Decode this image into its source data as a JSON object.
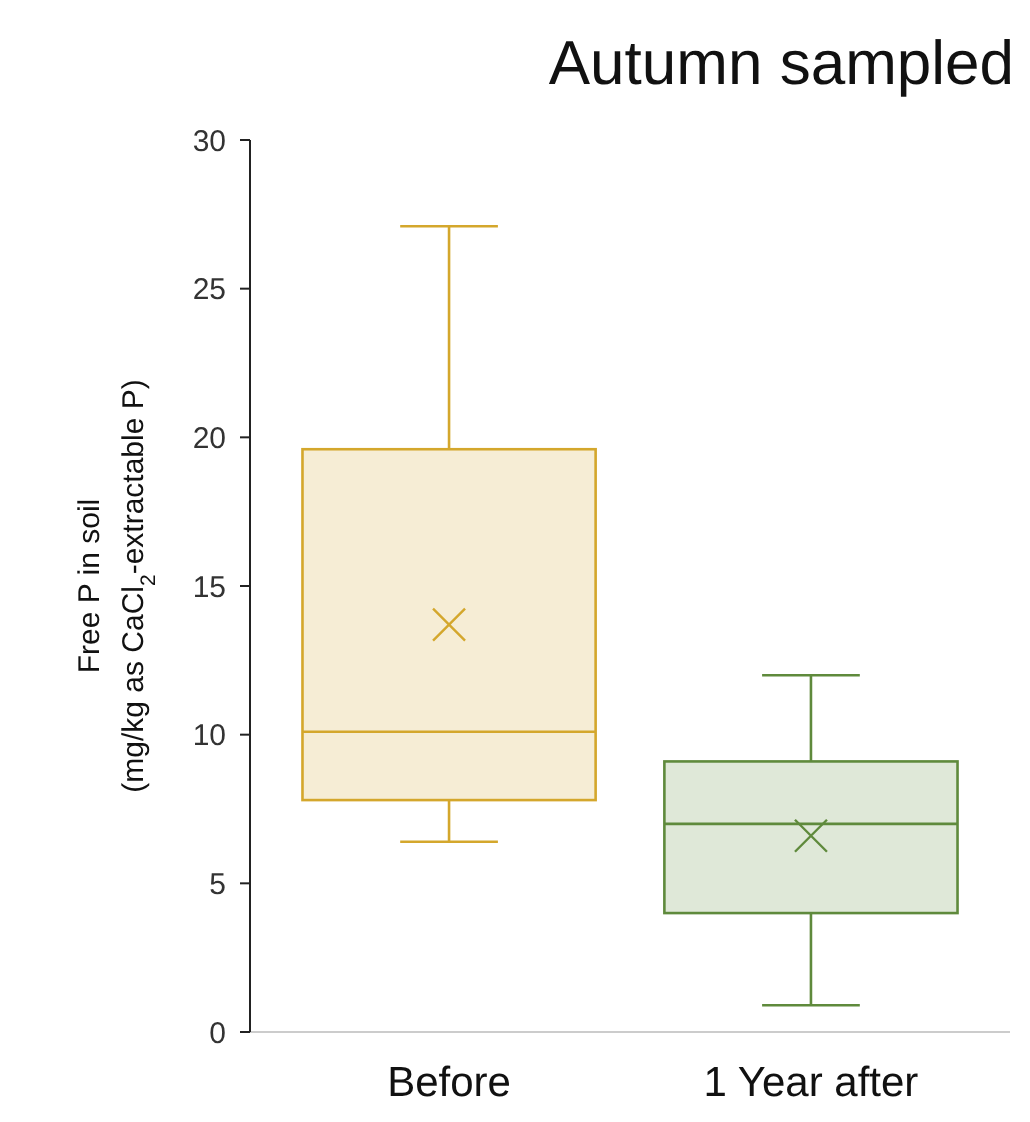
{
  "chart_data": {
    "type": "box",
    "title": "Autumn sampled",
    "ylabel": "Free P in soil\n(mg/kg as CaCl$_{2}$-extractable P)",
    "categories": [
      "Before",
      "1 Year after"
    ],
    "boxes": [
      {
        "low": 6.4,
        "q1": 7.8,
        "median": 10.1,
        "q3": 19.6,
        "high": 27.1,
        "mean": 13.7
      },
      {
        "low": 0.9,
        "q1": 4.0,
        "median": 7.0,
        "q3": 9.1,
        "high": 12.0,
        "mean": 6.6
      }
    ],
    "colors": [
      "#d4a72c",
      "#5f8a3c"
    ],
    "marker": "cross",
    "ylim": [
      0,
      30
    ],
    "yticks": [
      0,
      5,
      10,
      15,
      20,
      25,
      30
    ],
    "grid": false
  }
}
